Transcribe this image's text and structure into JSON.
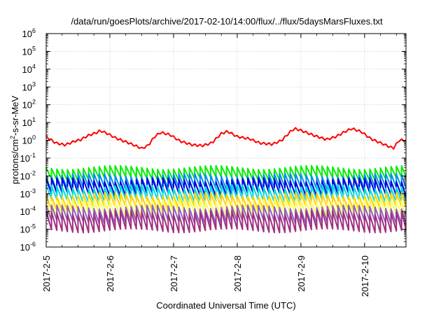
{
  "chart_data": {
    "type": "line",
    "title": "/data/run/goesPlots/archive/2017-02-10/14:00/flux/../flux/5daysMarsFluxes.txt",
    "xlabel": "Coordinated Universal Time (UTC)",
    "ylabel": {
      "pre": "protons/cm",
      "sup": "2",
      "post": "-s-sr-MeV"
    },
    "y_scale": "log",
    "ylim_exp": [
      -6,
      6
    ],
    "y_ticks": [
      {
        "base": "10",
        "exp": "-6"
      },
      {
        "base": "10",
        "exp": "-5"
      },
      {
        "base": "10",
        "exp": "-4"
      },
      {
        "base": "10",
        "exp": "-3"
      },
      {
        "base": "10",
        "exp": "-2"
      },
      {
        "base": "10",
        "exp": "-1"
      },
      {
        "base": "10",
        "exp": "0"
      },
      {
        "base": "10",
        "exp": "1"
      },
      {
        "base": "10",
        "exp": "2"
      },
      {
        "base": "10",
        "exp": "3"
      },
      {
        "base": "10",
        "exp": "4"
      },
      {
        "base": "10",
        "exp": "5"
      },
      {
        "base": "10",
        "exp": "6"
      }
    ],
    "x_ticks": [
      "2017-2-5",
      "2017-2-6",
      "2017-2-7",
      "2017-2-8",
      "2017-2-9",
      "2017-2-10"
    ],
    "xlim": [
      5,
      10.65
    ],
    "grid": true,
    "legend": "none",
    "sawtooth_period_days": 0.0833,
    "series": [
      {
        "color": "#ff0000",
        "type": "smooth",
        "points": [
          [
            5.0,
            1.6
          ],
          [
            5.15,
            0.7
          ],
          [
            5.3,
            0.55
          ],
          [
            5.45,
            0.9
          ],
          [
            5.55,
            1.1
          ],
          [
            5.65,
            1.8
          ],
          [
            5.78,
            2.6
          ],
          [
            5.85,
            3.5
          ],
          [
            5.95,
            2.5
          ],
          [
            6.1,
            1.3
          ],
          [
            6.3,
            0.7
          ],
          [
            6.5,
            0.35
          ],
          [
            6.6,
            0.5
          ],
          [
            6.7,
            1.6
          ],
          [
            6.8,
            2.8
          ],
          [
            6.95,
            2.0
          ],
          [
            7.1,
            0.9
          ],
          [
            7.3,
            0.55
          ],
          [
            7.45,
            0.5
          ],
          [
            7.6,
            0.7
          ],
          [
            7.75,
            2.4
          ],
          [
            7.85,
            3.2
          ],
          [
            8.0,
            1.6
          ],
          [
            8.2,
            1.2
          ],
          [
            8.35,
            0.7
          ],
          [
            8.55,
            0.6
          ],
          [
            8.7,
            1.0
          ],
          [
            8.85,
            3.5
          ],
          [
            8.9,
            4.6
          ],
          [
            9.0,
            3.6
          ],
          [
            9.2,
            1.9
          ],
          [
            9.4,
            1.1
          ],
          [
            9.55,
            1.6
          ],
          [
            9.7,
            3.2
          ],
          [
            9.8,
            4.6
          ],
          [
            9.95,
            3.0
          ],
          [
            10.1,
            1.2
          ],
          [
            10.3,
            0.6
          ],
          [
            10.45,
            0.35
          ],
          [
            10.55,
            1.1
          ],
          [
            10.65,
            0.9
          ]
        ],
        "jitter": 0.35
      },
      {
        "color": "#00ee00",
        "type": "sawtooth",
        "low": 0.007,
        "high": 0.03
      },
      {
        "color": "#0090ee",
        "type": "sawtooth",
        "low": 0.0018,
        "high": 0.011
      },
      {
        "color": "#0000dd",
        "type": "sawtooth",
        "low": 0.0009,
        "high": 0.006
      },
      {
        "color": "#00dddd",
        "type": "sawtooth",
        "low": 0.0004,
        "high": 0.0025
      },
      {
        "color": "#ffd000",
        "type": "sawtooth",
        "low": 0.00015,
        "high": 0.0009
      },
      {
        "color": "#ffff66",
        "type": "sawtooth",
        "low": 6e-05,
        "high": 0.0004
      },
      {
        "color": "#9060c0",
        "type": "sawtooth",
        "low": 2.5e-05,
        "high": 0.00018
      },
      {
        "color": "#a03080",
        "type": "sawtooth",
        "low": 8.5e-06,
        "high": 9e-05
      }
    ]
  }
}
